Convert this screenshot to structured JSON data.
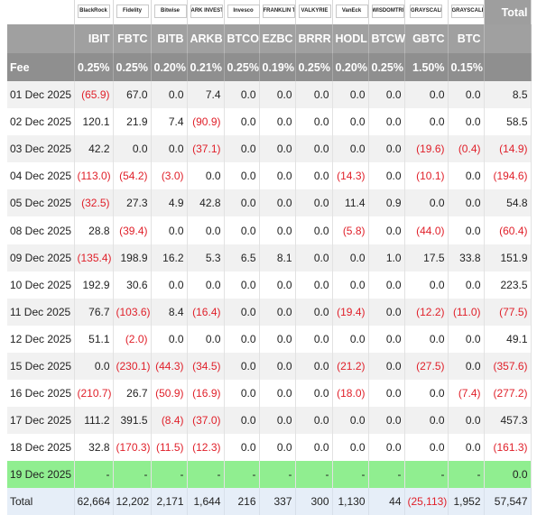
{
  "logos": [
    {
      "name": "blackrock-logo",
      "text": "BlackRock"
    },
    {
      "name": "fidelity-logo",
      "text": "Fidelity"
    },
    {
      "name": "bitwise-logo",
      "text": "Bitwise"
    },
    {
      "name": "ark-logo",
      "text": "ARK INVEST"
    },
    {
      "name": "invesco-logo",
      "text": "Invesco"
    },
    {
      "name": "franklin-logo",
      "text": "FRANKLIN TEMPLETON"
    },
    {
      "name": "valkyrie-logo",
      "text": "VALKYRIE"
    },
    {
      "name": "vaneck-logo",
      "text": "VanEck"
    },
    {
      "name": "wisdomtree-logo",
      "text": "WISDOMTREE"
    },
    {
      "name": "grayscale-logo",
      "text": "GRAYSCALE"
    },
    {
      "name": "grayscale-mini-logo",
      "text": "GRAYSCALE"
    }
  ],
  "total_header": "Total",
  "tickers": [
    "IBIT",
    "FBTC",
    "BITB",
    "ARKB",
    "BTCO",
    "EZBC",
    "BRRR",
    "HODL",
    "BTCW",
    "GBTC",
    "BTC"
  ],
  "fee_label": "Fee",
  "fees": [
    "0.25%",
    "0.25%",
    "0.20%",
    "0.21%",
    "0.25%",
    "0.19%",
    "0.25%",
    "0.20%",
    "0.25%",
    "1.50%",
    "0.15%",
    ""
  ],
  "rows": [
    {
      "date": "01 Dec 2025",
      "values": [
        "(65.9)",
        "67.0",
        "0.0",
        "7.4",
        "0.0",
        "0.0",
        "0.0",
        "0.0",
        "0.0",
        "0.0",
        "0.0",
        "8.5"
      ]
    },
    {
      "date": "02 Dec 2025",
      "values": [
        "120.1",
        "21.9",
        "7.4",
        "(90.9)",
        "0.0",
        "0.0",
        "0.0",
        "0.0",
        "0.0",
        "0.0",
        "0.0",
        "58.5"
      ]
    },
    {
      "date": "03 Dec 2025",
      "values": [
        "42.2",
        "0.0",
        "0.0",
        "(37.1)",
        "0.0",
        "0.0",
        "0.0",
        "0.0",
        "0.0",
        "(19.6)",
        "(0.4)",
        "(14.9)"
      ]
    },
    {
      "date": "04 Dec 2025",
      "values": [
        "(113.0)",
        "(54.2)",
        "(3.0)",
        "0.0",
        "0.0",
        "0.0",
        "0.0",
        "(14.3)",
        "0.0",
        "(10.1)",
        "0.0",
        "(194.6)"
      ]
    },
    {
      "date": "05 Dec 2025",
      "values": [
        "(32.5)",
        "27.3",
        "4.9",
        "42.8",
        "0.0",
        "0.0",
        "0.0",
        "11.4",
        "0.9",
        "0.0",
        "0.0",
        "54.8"
      ]
    },
    {
      "date": "08 Dec 2025",
      "values": [
        "28.8",
        "(39.4)",
        "0.0",
        "0.0",
        "0.0",
        "0.0",
        "0.0",
        "(5.8)",
        "0.0",
        "(44.0)",
        "0.0",
        "(60.4)"
      ]
    },
    {
      "date": "09 Dec 2025",
      "values": [
        "(135.4)",
        "198.9",
        "16.2",
        "5.3",
        "6.5",
        "8.1",
        "0.0",
        "0.0",
        "1.0",
        "17.5",
        "33.8",
        "151.9"
      ]
    },
    {
      "date": "10 Dec 2025",
      "values": [
        "192.9",
        "30.6",
        "0.0",
        "0.0",
        "0.0",
        "0.0",
        "0.0",
        "0.0",
        "0.0",
        "0.0",
        "0.0",
        "223.5"
      ]
    },
    {
      "date": "11 Dec 2025",
      "values": [
        "76.7",
        "(103.6)",
        "8.4",
        "(16.4)",
        "0.0",
        "0.0",
        "0.0",
        "(19.4)",
        "0.0",
        "(12.2)",
        "(11.0)",
        "(77.5)"
      ]
    },
    {
      "date": "12 Dec 2025",
      "values": [
        "51.1",
        "(2.0)",
        "0.0",
        "0.0",
        "0.0",
        "0.0",
        "0.0",
        "0.0",
        "0.0",
        "0.0",
        "0.0",
        "49.1"
      ]
    },
    {
      "date": "15 Dec 2025",
      "values": [
        "0.0",
        "(230.1)",
        "(44.3)",
        "(34.5)",
        "0.0",
        "0.0",
        "0.0",
        "(21.2)",
        "0.0",
        "(27.5)",
        "0.0",
        "(357.6)"
      ]
    },
    {
      "date": "16 Dec 2025",
      "values": [
        "(210.7)",
        "26.7",
        "(50.9)",
        "(16.9)",
        "0.0",
        "0.0",
        "0.0",
        "(18.0)",
        "0.0",
        "0.0",
        "(7.4)",
        "(277.2)"
      ]
    },
    {
      "date": "17 Dec 2025",
      "values": [
        "111.2",
        "391.5",
        "(8.4)",
        "(37.0)",
        "0.0",
        "0.0",
        "0.0",
        "0.0",
        "0.0",
        "0.0",
        "0.0",
        "457.3"
      ]
    },
    {
      "date": "18 Dec 2025",
      "values": [
        "32.8",
        "(170.3)",
        "(11.5)",
        "(12.3)",
        "0.0",
        "0.0",
        "0.0",
        "0.0",
        "0.0",
        "0.0",
        "0.0",
        "(161.3)"
      ]
    },
    {
      "date": "19 Dec 2025",
      "values": [
        "-",
        "-",
        "-",
        "-",
        "-",
        "-",
        "-",
        "-",
        "-",
        "-",
        "-",
        "0.0"
      ],
      "highlight": true
    }
  ],
  "total_label": "Total",
  "totals": [
    "62,664",
    "12,202",
    "2,171",
    "1,644",
    "216",
    "337",
    "300",
    "1,130",
    "44",
    "(25,113)",
    "1,952",
    "57,547"
  ],
  "colors": {
    "negative": "#e0202a",
    "highlight": "#90ee90",
    "header": "#a0a0a0",
    "total_bg": "#e6eef8"
  }
}
